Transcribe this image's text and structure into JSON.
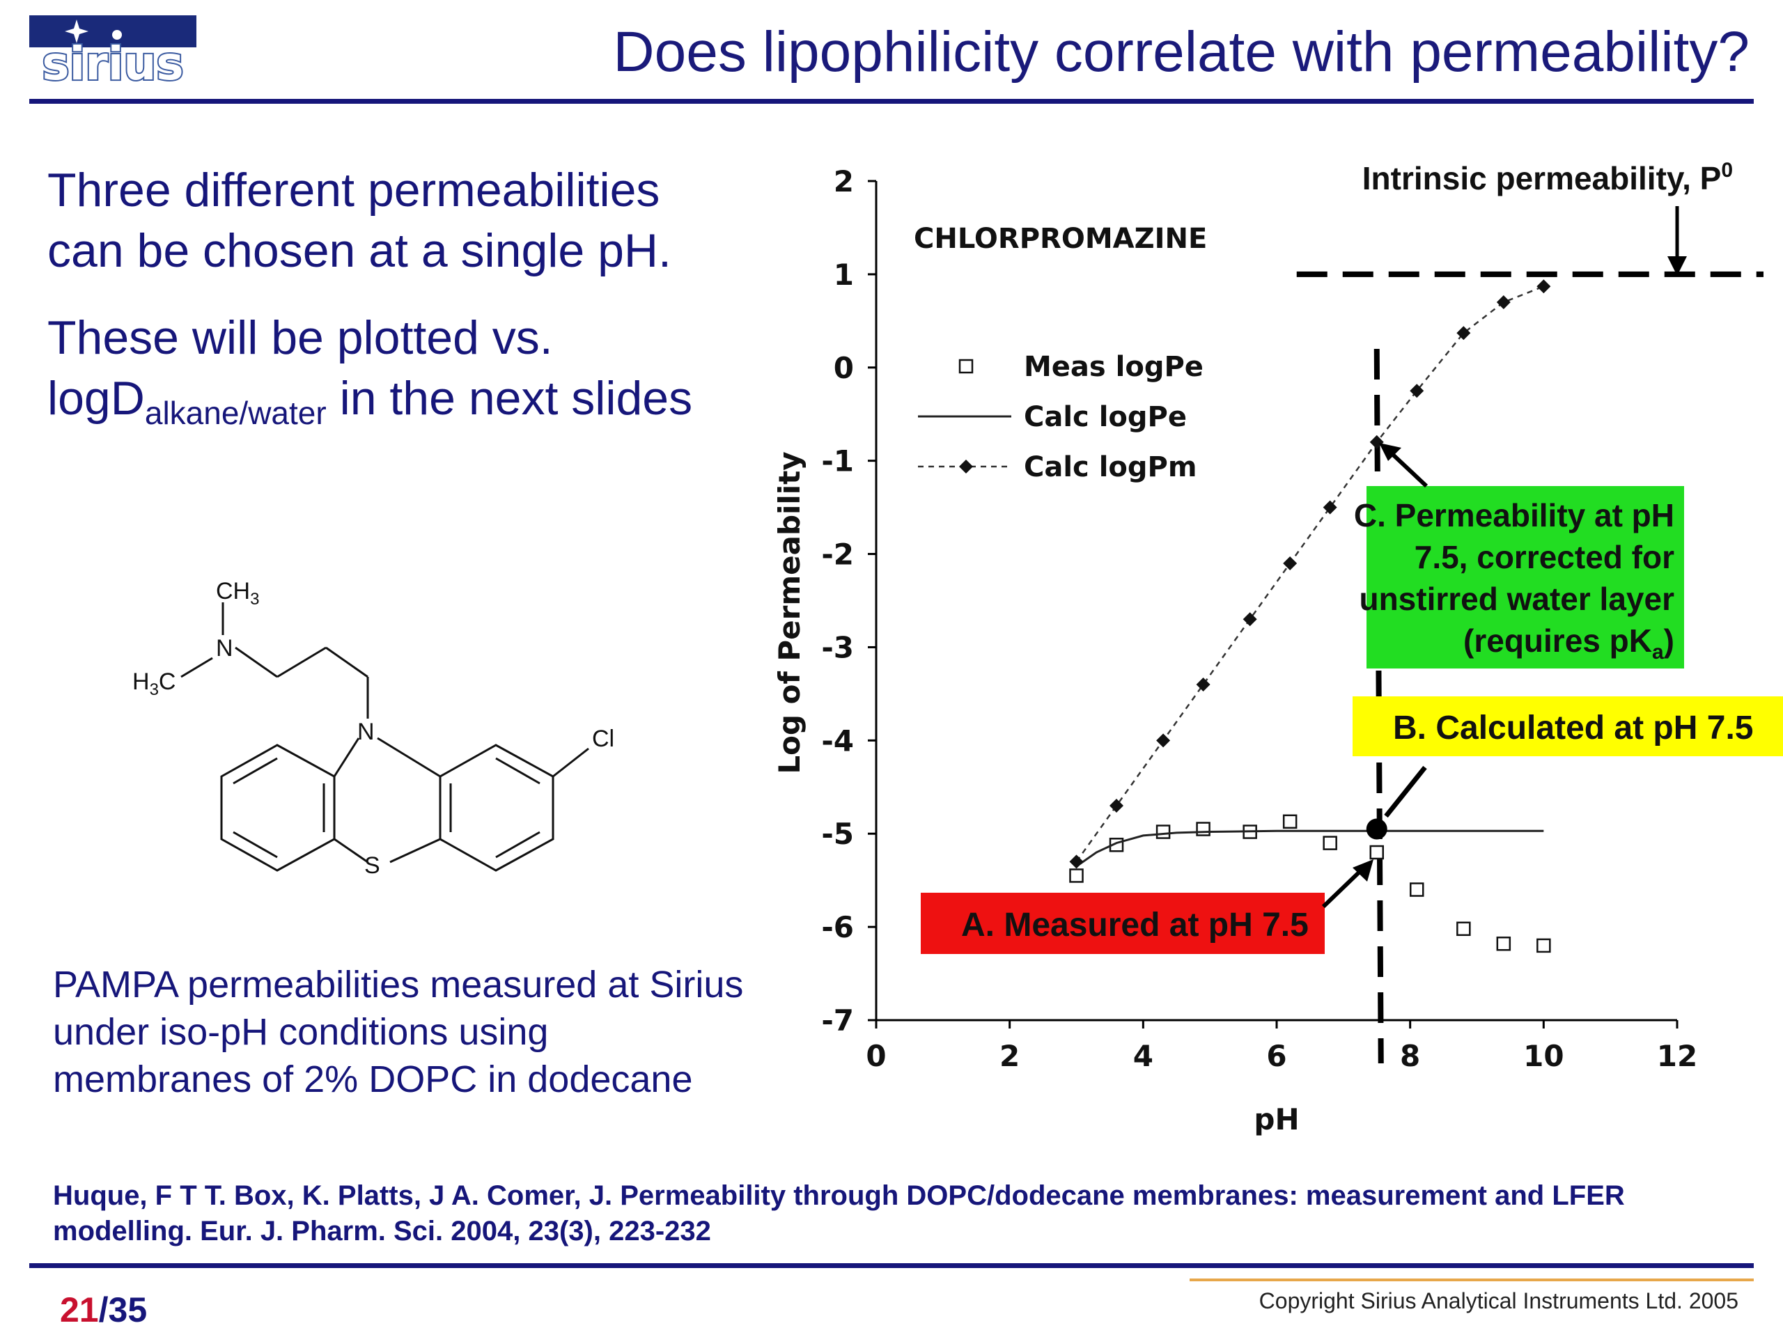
{
  "header": {
    "logo_text": "sirius",
    "title": "Does lipophilicity correlate with permeability?"
  },
  "left_panel": {
    "intro_1": "Three different permeabilities can be chosen at a single pH.",
    "intro_2_prefix": "These will be plotted vs. logD",
    "intro_2_subscript": "alkane/water",
    "intro_2_suffix": " in the next slides",
    "method_note": "PAMPA permeabilities measured at Sirius under iso-pH conditions using membranes of 2% DOPC in dodecane"
  },
  "structure": {
    "labels": {
      "ch3": "CH",
      "ch3_sub": "3",
      "h3c_sub": "3",
      "h3c_c": "C",
      "h3c_h": "H",
      "n_amine": "N",
      "n_ring": "N",
      "s": "S",
      "cl": "Cl"
    }
  },
  "chart_data": {
    "type": "scatter",
    "title": "",
    "compound_label": "CHLORPROMAZINE",
    "xlabel": "pH",
    "ylabel": "Log of Permeability",
    "xlim": [
      0,
      12
    ],
    "ylim": [
      -7,
      2
    ],
    "xticks": [
      0,
      2,
      4,
      6,
      8,
      10,
      12
    ],
    "yticks": [
      2,
      1,
      0,
      -1,
      -2,
      -3,
      -4,
      -5,
      -6,
      -7
    ],
    "grid": false,
    "legend_position": "upper-left",
    "series": [
      {
        "name": "Meas logPe",
        "style": "open-square",
        "x": [
          3.0,
          3.6,
          4.3,
          4.9,
          5.6,
          6.2,
          6.8,
          7.5,
          8.1,
          8.8,
          9.4,
          10.0
        ],
        "y": [
          -5.45,
          -5.12,
          -4.98,
          -4.95,
          -4.98,
          -4.87,
          -5.1,
          -5.2,
          -5.6,
          -6.02,
          -6.18,
          -6.2
        ]
      },
      {
        "name": "Calc logPe",
        "style": "solid-line",
        "x": [
          3.0,
          3.3,
          3.6,
          4.0,
          4.5,
          5.0,
          6.0,
          7.0,
          8.0,
          9.0,
          10.0
        ],
        "y": [
          -5.35,
          -5.2,
          -5.1,
          -5.02,
          -4.99,
          -4.98,
          -4.97,
          -4.97,
          -4.97,
          -4.97,
          -4.97
        ]
      },
      {
        "name": "Calc logPm",
        "style": "dashed-line-diamond",
        "x": [
          3.0,
          3.6,
          4.3,
          4.9,
          5.6,
          6.2,
          6.8,
          7.5,
          8.1,
          8.8,
          9.4,
          10.0
        ],
        "y": [
          -5.3,
          -4.7,
          -4.0,
          -3.4,
          -2.7,
          -2.1,
          -1.5,
          -0.8,
          -0.25,
          0.37,
          0.7,
          0.87
        ]
      }
    ],
    "reference_lines": {
      "horizontal_y": 1.0,
      "horizontal_x_from": 6.3,
      "vertical_x": 7.5
    },
    "highlight_point": {
      "x": 7.5,
      "y": -4.95
    },
    "annotations": {
      "intrinsic": {
        "text": "Intrinsic permeability, P",
        "sup": "0"
      },
      "c_line1": "C. Permeability at pH",
      "c_line2": "7.5, corrected for",
      "c_line3": "unstirred water layer",
      "c_line4_prefix": "(requires pK",
      "c_line4_sub": "a",
      "c_line4_suffix": ")",
      "b": "B. Calculated at pH 7.5",
      "a": "A. Measured at pH 7.5"
    },
    "colors": {
      "box_a": "#ee1111",
      "box_b": "#ffff00",
      "box_c": "#22dd22"
    }
  },
  "footer": {
    "reference": "Huque, F T T. Box, K. Platts, J A. Comer, J. Permeability through DOPC/dodecane membranes: measurement and LFER modelling. Eur. J. Pharm. Sci. 2004, 23(3), 223-232",
    "page_current": "21",
    "page_total": "/35",
    "copyright": "Copyright Sirius Analytical Instruments Ltd. 2005"
  }
}
